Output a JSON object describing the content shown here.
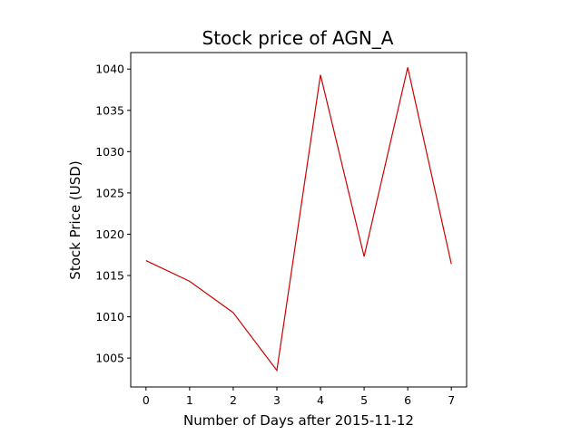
{
  "chart_data": {
    "type": "line",
    "title": "Stock price of AGN_A",
    "xlabel": "Number of Days after 2015-11-12",
    "ylabel": "Stock Price (USD)",
    "x": [
      0,
      1,
      2,
      3,
      4,
      5,
      6,
      7
    ],
    "series": [
      {
        "values": [
          1016.8,
          1014.3,
          1010.5,
          1003.5,
          1039.3,
          1017.3,
          1040.2,
          1016.4
        ],
        "color": "#cc0000"
      }
    ],
    "xlim": [
      -0.35,
      7.35
    ],
    "ylim": [
      1001.5,
      1042.0
    ],
    "xticks": [
      0,
      1,
      2,
      3,
      4,
      5,
      6,
      7
    ],
    "yticks": [
      1005,
      1010,
      1015,
      1020,
      1025,
      1030,
      1035,
      1040
    ],
    "grid": false,
    "legend": false
  }
}
